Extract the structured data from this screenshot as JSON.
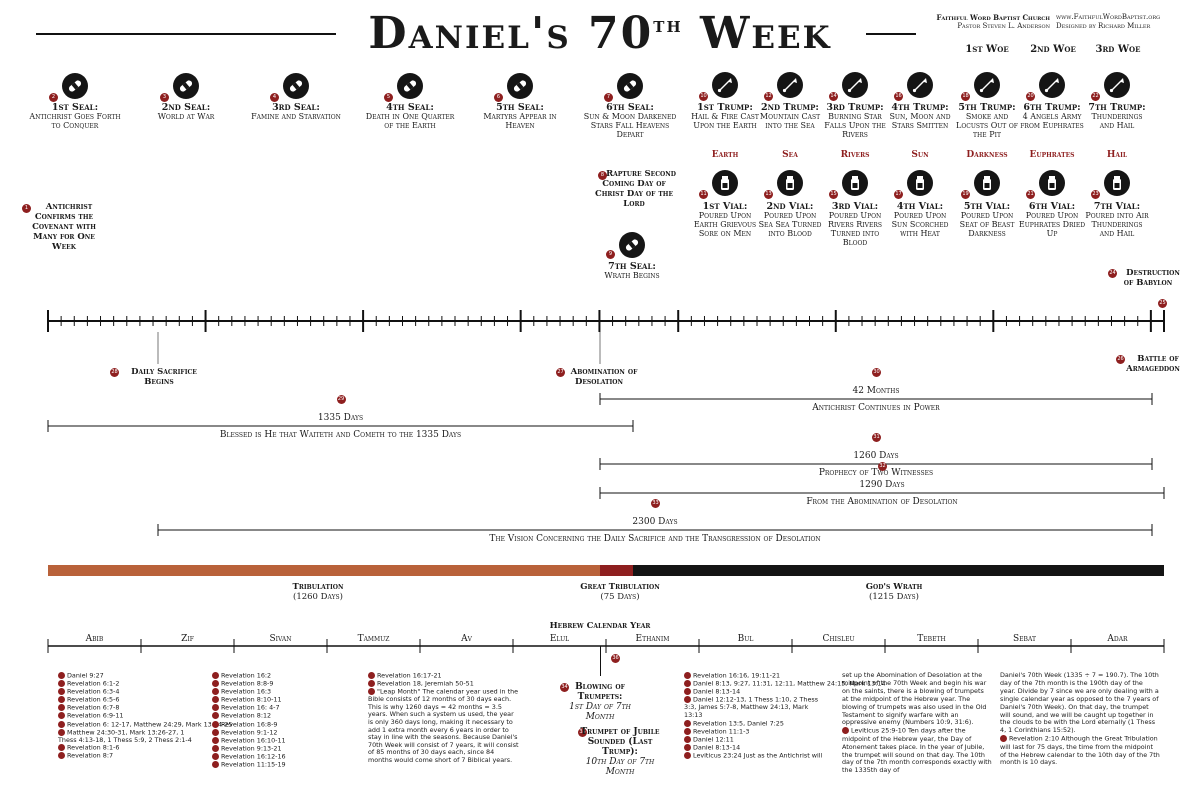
{
  "title": {
    "main": "Daniel's 70",
    "sup": "th",
    "tail": " Week"
  },
  "publisher": {
    "church": "Faithful Word Baptist Church",
    "pastor": "Pastor Steven L. Anderson",
    "url": "www.FaithfulWordBaptist.org",
    "designer": "Designed by Richard Miller"
  },
  "woes": [
    "1st Woe",
    "2nd Woe",
    "3rd Woe"
  ],
  "seals": [
    {
      "n": "2",
      "head": "1st Seal:",
      "body": "Antichrist Goes Forth to Conquer",
      "icon": "seal-icon"
    },
    {
      "n": "3",
      "head": "2nd Seal:",
      "body": "World at War",
      "icon": "seal-icon"
    },
    {
      "n": "4",
      "head": "3rd Seal:",
      "body": "Famine and Starvation",
      "icon": "seal-icon"
    },
    {
      "n": "5",
      "head": "4th Seal:",
      "body": "Death in One Quarter of the Earth",
      "icon": "seal-icon"
    },
    {
      "n": "6",
      "head": "5th Seal:",
      "body": "Martyrs Appear in Heaven",
      "icon": "seal-icon"
    },
    {
      "n": "7",
      "head": "6th Seal:",
      "body": "Sun & Moon Darkened Stars Fall Heavens Depart",
      "icon": "seal-icon"
    }
  ],
  "trumps": [
    {
      "n": "10",
      "head": "1st Trump:",
      "body": "Hail & Fire Cast Upon the Earth",
      "cat": "Earth"
    },
    {
      "n": "12",
      "head": "2nd Trump:",
      "body": "Mountain Cast into the Sea",
      "cat": "Sea"
    },
    {
      "n": "14",
      "head": "3rd Trump:",
      "body": "Burning Star Falls Upon the Rivers",
      "cat": "Rivers"
    },
    {
      "n": "16",
      "head": "4th Trump:",
      "body": "Sun, Moon and Stars Smitten",
      "cat": "Sun"
    },
    {
      "n": "18",
      "head": "5th Trump:",
      "body": "Smoke and Locusts Out of the Pit",
      "cat": "Darkness"
    },
    {
      "n": "20",
      "head": "6th Trump:",
      "body": "4 Angels Army from Euphrates",
      "cat": "Euphrates"
    },
    {
      "n": "22",
      "head": "7th Trump:",
      "body": "Thunderings and Hail",
      "cat": "Hail"
    }
  ],
  "vials": [
    {
      "n": "11",
      "head": "1st Vial:",
      "body": "Poured Upon Earth Grievous Sore on Men"
    },
    {
      "n": "13",
      "head": "2nd Vial:",
      "body": "Poured Upon Sea Sea Turned into Blood"
    },
    {
      "n": "15",
      "head": "3rd Vial:",
      "body": "Poured Upon Rivers Rivers Turned into Blood"
    },
    {
      "n": "17",
      "head": "4th Vial:",
      "body": "Poured Upon Sun Scorched with Heat"
    },
    {
      "n": "19",
      "head": "5th Vial:",
      "body": "Poured Upon Seat of Beast Darkness"
    },
    {
      "n": "21",
      "head": "6th Vial:",
      "body": "Poured Upon Euphrates Dried Up"
    },
    {
      "n": "23",
      "head": "7th Vial:",
      "body": "Poured into Air Thunderings and Hail"
    }
  ],
  "events": {
    "antichrist": {
      "n": "1",
      "text": "Antichrist Confirms the Covenant with Many for One Week"
    },
    "rapture": {
      "n": "8",
      "text": "Rapture Second Coming Day of Christ Day of the Lord"
    },
    "seal7": {
      "n": "9",
      "head": "7th Seal:",
      "body": "Wrath Begins"
    },
    "babylon": {
      "n": "24",
      "text": "Destruction of Babylon"
    },
    "end_num": "25",
    "armageddon": {
      "n": "26",
      "text": "Battle of Armageddon"
    },
    "sacrifice": {
      "n": "28",
      "text": "Daily Sacrifice Begins"
    },
    "abomination": {
      "n": "27",
      "text": "Abomination of Desolation"
    }
  },
  "spans": [
    {
      "n": "30",
      "top": "42 Months",
      "bottom": "Antichrist Continues in Power"
    },
    {
      "n": "29",
      "top": "1335 Days",
      "bottom": "Blessed is He that Waiteth and Cometh to the 1335 Days"
    },
    {
      "n": "31",
      "top": "1260 Days",
      "bottom": "Prophecy of Two Witnesses"
    },
    {
      "n": "32",
      "top": "1290 Days",
      "bottom": "From the Abomination of Desolation"
    },
    {
      "n": "33",
      "top": "2300 Days",
      "bottom": "The Vision Concerning the Daily Sacrifice and the Transgression of Desolation"
    }
  ],
  "periods": [
    {
      "name": "Tribulation",
      "days": "(1260 Days)",
      "color": "#b9623a"
    },
    {
      "name": "Great Tribulation",
      "days": "(75 Days)",
      "color": "#8e1f1f"
    },
    {
      "name": "God's Wrath",
      "days": "(1215 Days)",
      "color": "#141414"
    }
  ],
  "calendar": {
    "title": "Hebrew Calendar Year",
    "months": [
      "Abib",
      "Zif",
      "Sivan",
      "Tammuz",
      "Av",
      "Elul",
      "Ethanim",
      "Bul",
      "Chisleu",
      "Tebeth",
      "Sebat",
      "Adar"
    ]
  },
  "feasts": [
    {
      "n": "34",
      "head": "Blowing of Trumpets:",
      "body": "1st Day of 7th Month"
    },
    {
      "n": "35",
      "head": "Trumpet of Jubile Sounded (Last Trump):",
      "body": "10th Day of 7th Month"
    }
  ],
  "feast_marker": "36",
  "refs_col1": [
    "Daniel 9:27",
    "Revelation 6:1-2",
    "Revelation 6:3-4",
    "Revelation 6:5-6",
    "Revelation 6:7-8",
    "Revelation 6:9-11",
    "Revelation 6: 12-17, Matthew 24:29, Mark 13:24-25",
    "Matthew 24:30-31, Mark 13:26-27, 1 Thess 4:13-18, 1 Thess 5:9, 2 Thess 2:1-4",
    "Revelation 8:1-6",
    "Revelation 8:7"
  ],
  "refs_col1_nums": [
    "1",
    "2",
    "3",
    "4",
    "5",
    "6",
    "7",
    "8",
    "9",
    "10"
  ],
  "refs_col2": [
    "Revelation 16:2",
    "Revelation 8:8-9",
    "Revelation 16:3",
    "Revelation 8:10-11",
    "Revelation 16: 4-7",
    "Revelation 8:12",
    "Revelation 16:8-9",
    "Revelation 9:1-12",
    "Revelation 16:10-11",
    "Revelation 9:13-21",
    "Revelation 16:12-16",
    "Revelation 11:15-19"
  ],
  "refs_col2_nums": [
    "11",
    "12",
    "13",
    "14",
    "15",
    "16",
    "17",
    "18",
    "19",
    "20",
    "21",
    "22"
  ],
  "refs_col3": [
    "Revelation 16:17-21",
    "Revelation 18, Jeremiah 50-51",
    "\"Leap Month\" The calendar year used in the Bible consists of 12 months of 30 days each. This is why 1260 days = 42 months = 3.5 years. When such a system us used, the year is only 360 days long, making it necessary to add 1 extra month every 6 years in order to stay in line with the seasons. Because Daniel's 70th Week will consist of 7 years, it will consist of 85 months of 30 days each, since 84 months would come short of 7 Biblical years."
  ],
  "refs_col3_nums": [
    "23",
    "24",
    "25"
  ],
  "refs_col4": [
    "Revelation 16:16, 19:11-21",
    "Daniel 8:13, 9:27, 11:31, 12:11, Matthew 24:15, Mark 13:14",
    "Daniel 8:13-14",
    "Daniel 12:12-13, 1 Thess 1:10, 2 Thess 3:3, James 5:7-8, Matthew 24:13, Mark 13:13",
    "Revelation 13:5, Daniel 7:25",
    "Revelation 11:1-3",
    "Daniel 12:11",
    "Daniel 8:13-14",
    "Leviticus 23:24 Just as the Antichrist will"
  ],
  "refs_col4_nums": [
    "26",
    "27",
    "28",
    "29",
    "30",
    "31",
    "32",
    "33",
    "34"
  ],
  "para_col5": "set up the Abomination of Desolation at the midpoint of the 70th Week and begin his war on the saints, there is a blowing of trumpets at the midpoint of the Hebrew year. The blowing of trumpets was also used in the Old Testament to signify warfare with an oppressive enemy (Numbers 10:9, 31:6).",
  "para_col5b_num": "35",
  "para_col5b": "Leviticus 25:9-10 Ten days after the midpoint of the Hebrew year, the Day of Atonement takes place. In the year of Jubile, the trumpet will sound on that day. The 10th day of the 7th month corresponds exactly with the 1335th day of",
  "para_col6": "Daniel's 70th Week (1335 ÷ 7 = 190.7). The 10th day of the 7th month is the 190th day of the year. Divide by 7 since we are only dealing with a single calendar year as opposed to the 7 years of Daniel's 70th Week). On that day, the trumpet will sound, and we will be caught up together in the clouds to be with the Lord eternally (1 Thess 4, 1 Corinthians 15:52).",
  "para_col6b_num": "36",
  "para_col6b": "Revelation 2:10 Although the Great Tribulation will last for 75 days, the time from the midpoint of the Hebrew calendar to the 10th day of the 7th month is 10 days."
}
